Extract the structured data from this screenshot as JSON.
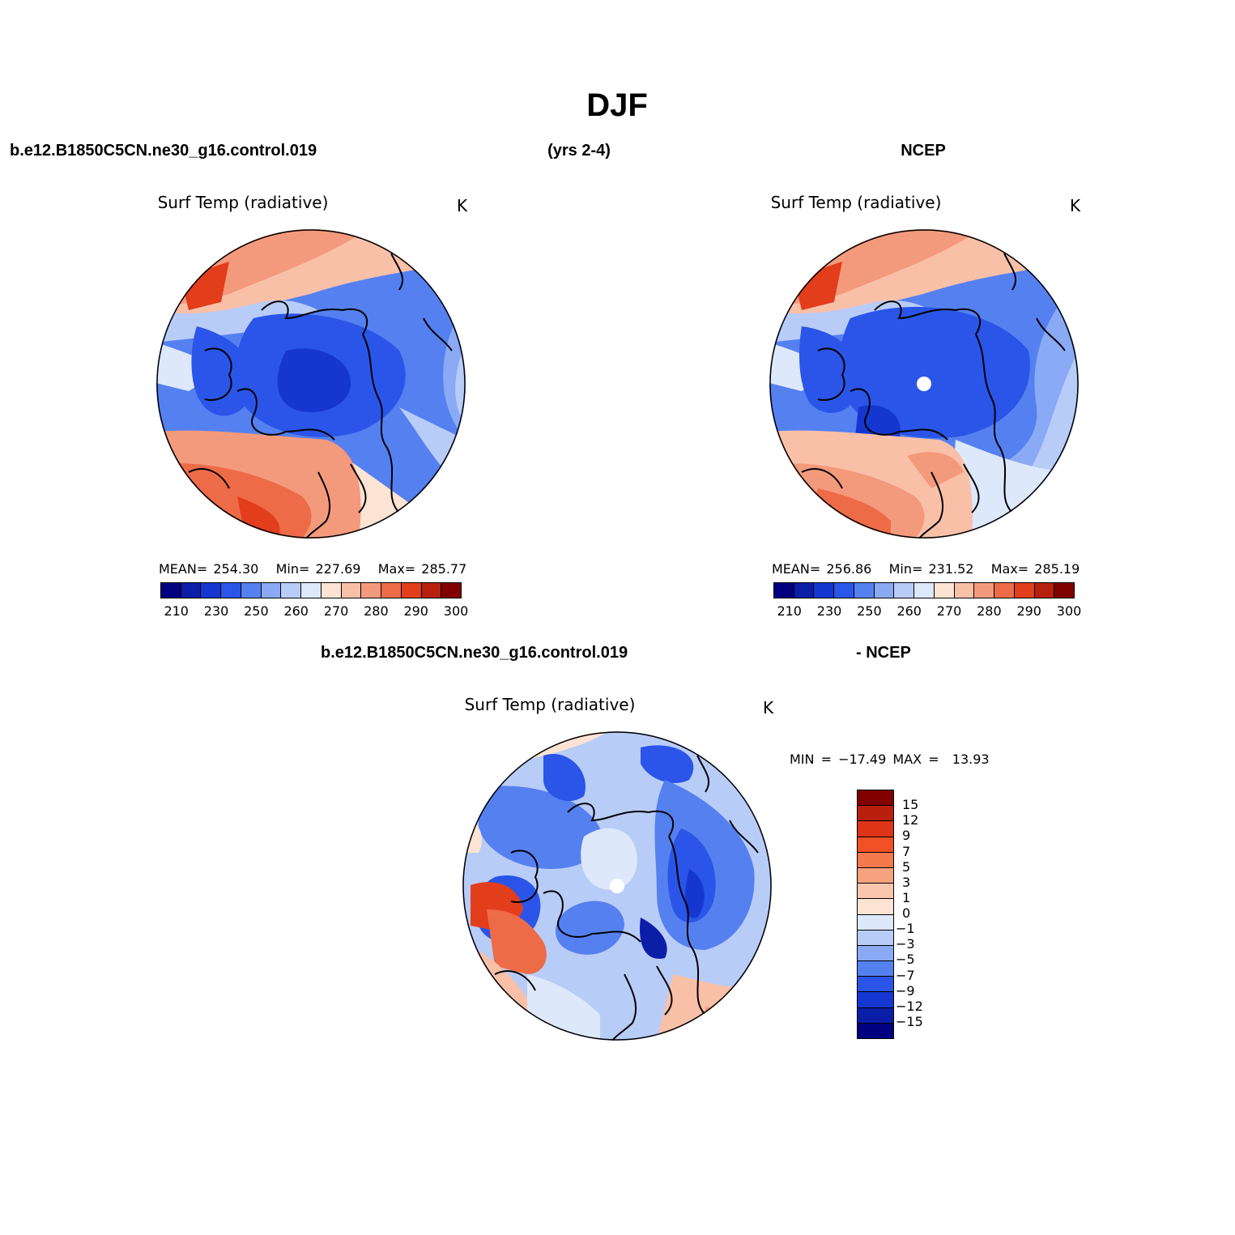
{
  "figure": {
    "title": "DJF",
    "case_name": "b.e12.B1850C5CN.ne30_g16.control.019",
    "years": "(yrs 2-4)",
    "reference": "NCEP",
    "diff_case": "b.e12.B1850C5CN.ne30_g16.control.019",
    "diff_ref": "- NCEP"
  },
  "panels": {
    "model": {
      "variable": "Surf Temp (radiative)",
      "units": "K",
      "stats": {
        "mean_label": "MEAN=",
        "mean": "254.30",
        "min_label": "Min=",
        "min": "227.69",
        "max_label": "Max=",
        "max": "285.77"
      }
    },
    "obs": {
      "variable": "Surf Temp (radiative)",
      "units": "K",
      "stats": {
        "mean_label": "MEAN=",
        "mean": "256.86",
        "min_label": "Min=",
        "min": "231.52",
        "max_label": "Max=",
        "max": "285.19"
      }
    },
    "diff": {
      "variable": "Surf Temp (radiative)",
      "units": "K",
      "stats": {
        "min_label": "MIN =",
        "min": "−17.49",
        "max_label": "MAX =",
        "max": "13.93"
      }
    }
  },
  "colorbar_abs": {
    "colors": [
      "#000080",
      "#0a1ea8",
      "#1537d0",
      "#2a55e8",
      "#5580f0",
      "#8aaaf5",
      "#b8ccf8",
      "#dde8fb",
      "#fde3d3",
      "#f9c0a8",
      "#f49a7c",
      "#ee6b48",
      "#e23e1c",
      "#b8200d",
      "#800000"
    ],
    "ticks": [
      "210",
      "230",
      "250",
      "260",
      "270",
      "280",
      "290",
      "300"
    ]
  },
  "colorbar_diff": {
    "colors_top_to_bottom": [
      "#800000",
      "#b8200d",
      "#de3418",
      "#f25126",
      "#f47a4e",
      "#f7a27e",
      "#fac6ad",
      "#fde3d3",
      "#dde8fb",
      "#b8ccf8",
      "#8aaaf5",
      "#5580f0",
      "#2a55e8",
      "#1537d0",
      "#0a1ea8",
      "#000080"
    ],
    "ticks": [
      "15",
      "12",
      "9",
      "7",
      "5",
      "3",
      "1",
      "0",
      "−1",
      "−3",
      "−5",
      "−7",
      "−9",
      "−12",
      "−15"
    ]
  }
}
